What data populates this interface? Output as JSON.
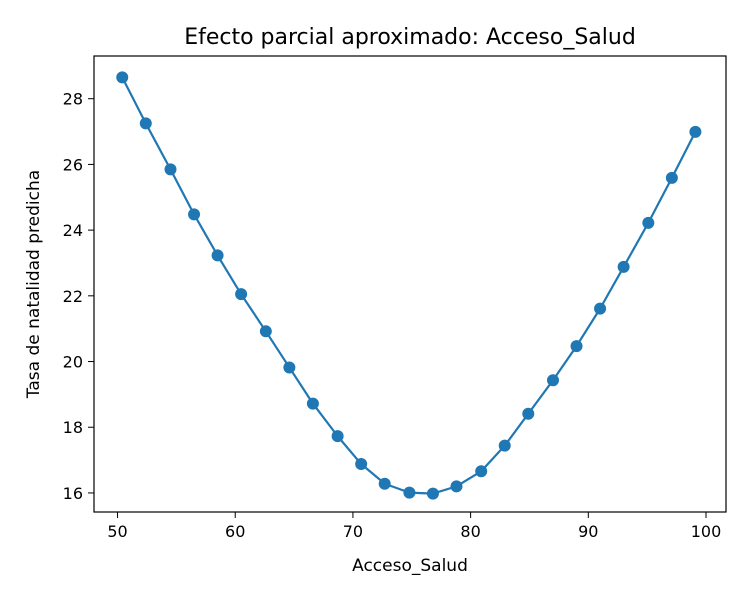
{
  "chart_data": {
    "type": "line",
    "title": "Efecto parcial aproximado: Acceso_Salud",
    "xlabel": "Acceso_Salud",
    "ylabel": "Tasa de natalidad predicha",
    "xlim": [
      48.0,
      101.7
    ],
    "ylim": [
      15.42,
      29.3
    ],
    "xticks": [
      50,
      60,
      70,
      80,
      90,
      100
    ],
    "yticks": [
      16,
      18,
      20,
      22,
      24,
      26,
      28
    ],
    "grid": false,
    "legend": "none",
    "series": [
      {
        "color": "#1f77b4",
        "marker": "circle",
        "x": [
          50.4,
          52.4,
          54.5,
          56.5,
          58.5,
          60.5,
          62.6,
          64.6,
          66.6,
          68.7,
          70.7,
          72.7,
          74.8,
          76.8,
          78.8,
          80.9,
          82.9,
          84.9,
          87.0,
          89.0,
          91.0,
          93.0,
          95.1,
          97.1,
          99.1
        ],
        "y": [
          28.65,
          27.25,
          25.85,
          24.48,
          23.23,
          22.05,
          20.92,
          19.82,
          18.72,
          17.73,
          16.88,
          16.28,
          16.01,
          15.98,
          16.2,
          16.66,
          17.44,
          18.41,
          19.43,
          20.47,
          21.61,
          22.88,
          24.22,
          25.59,
          26.99
        ]
      }
    ]
  }
}
